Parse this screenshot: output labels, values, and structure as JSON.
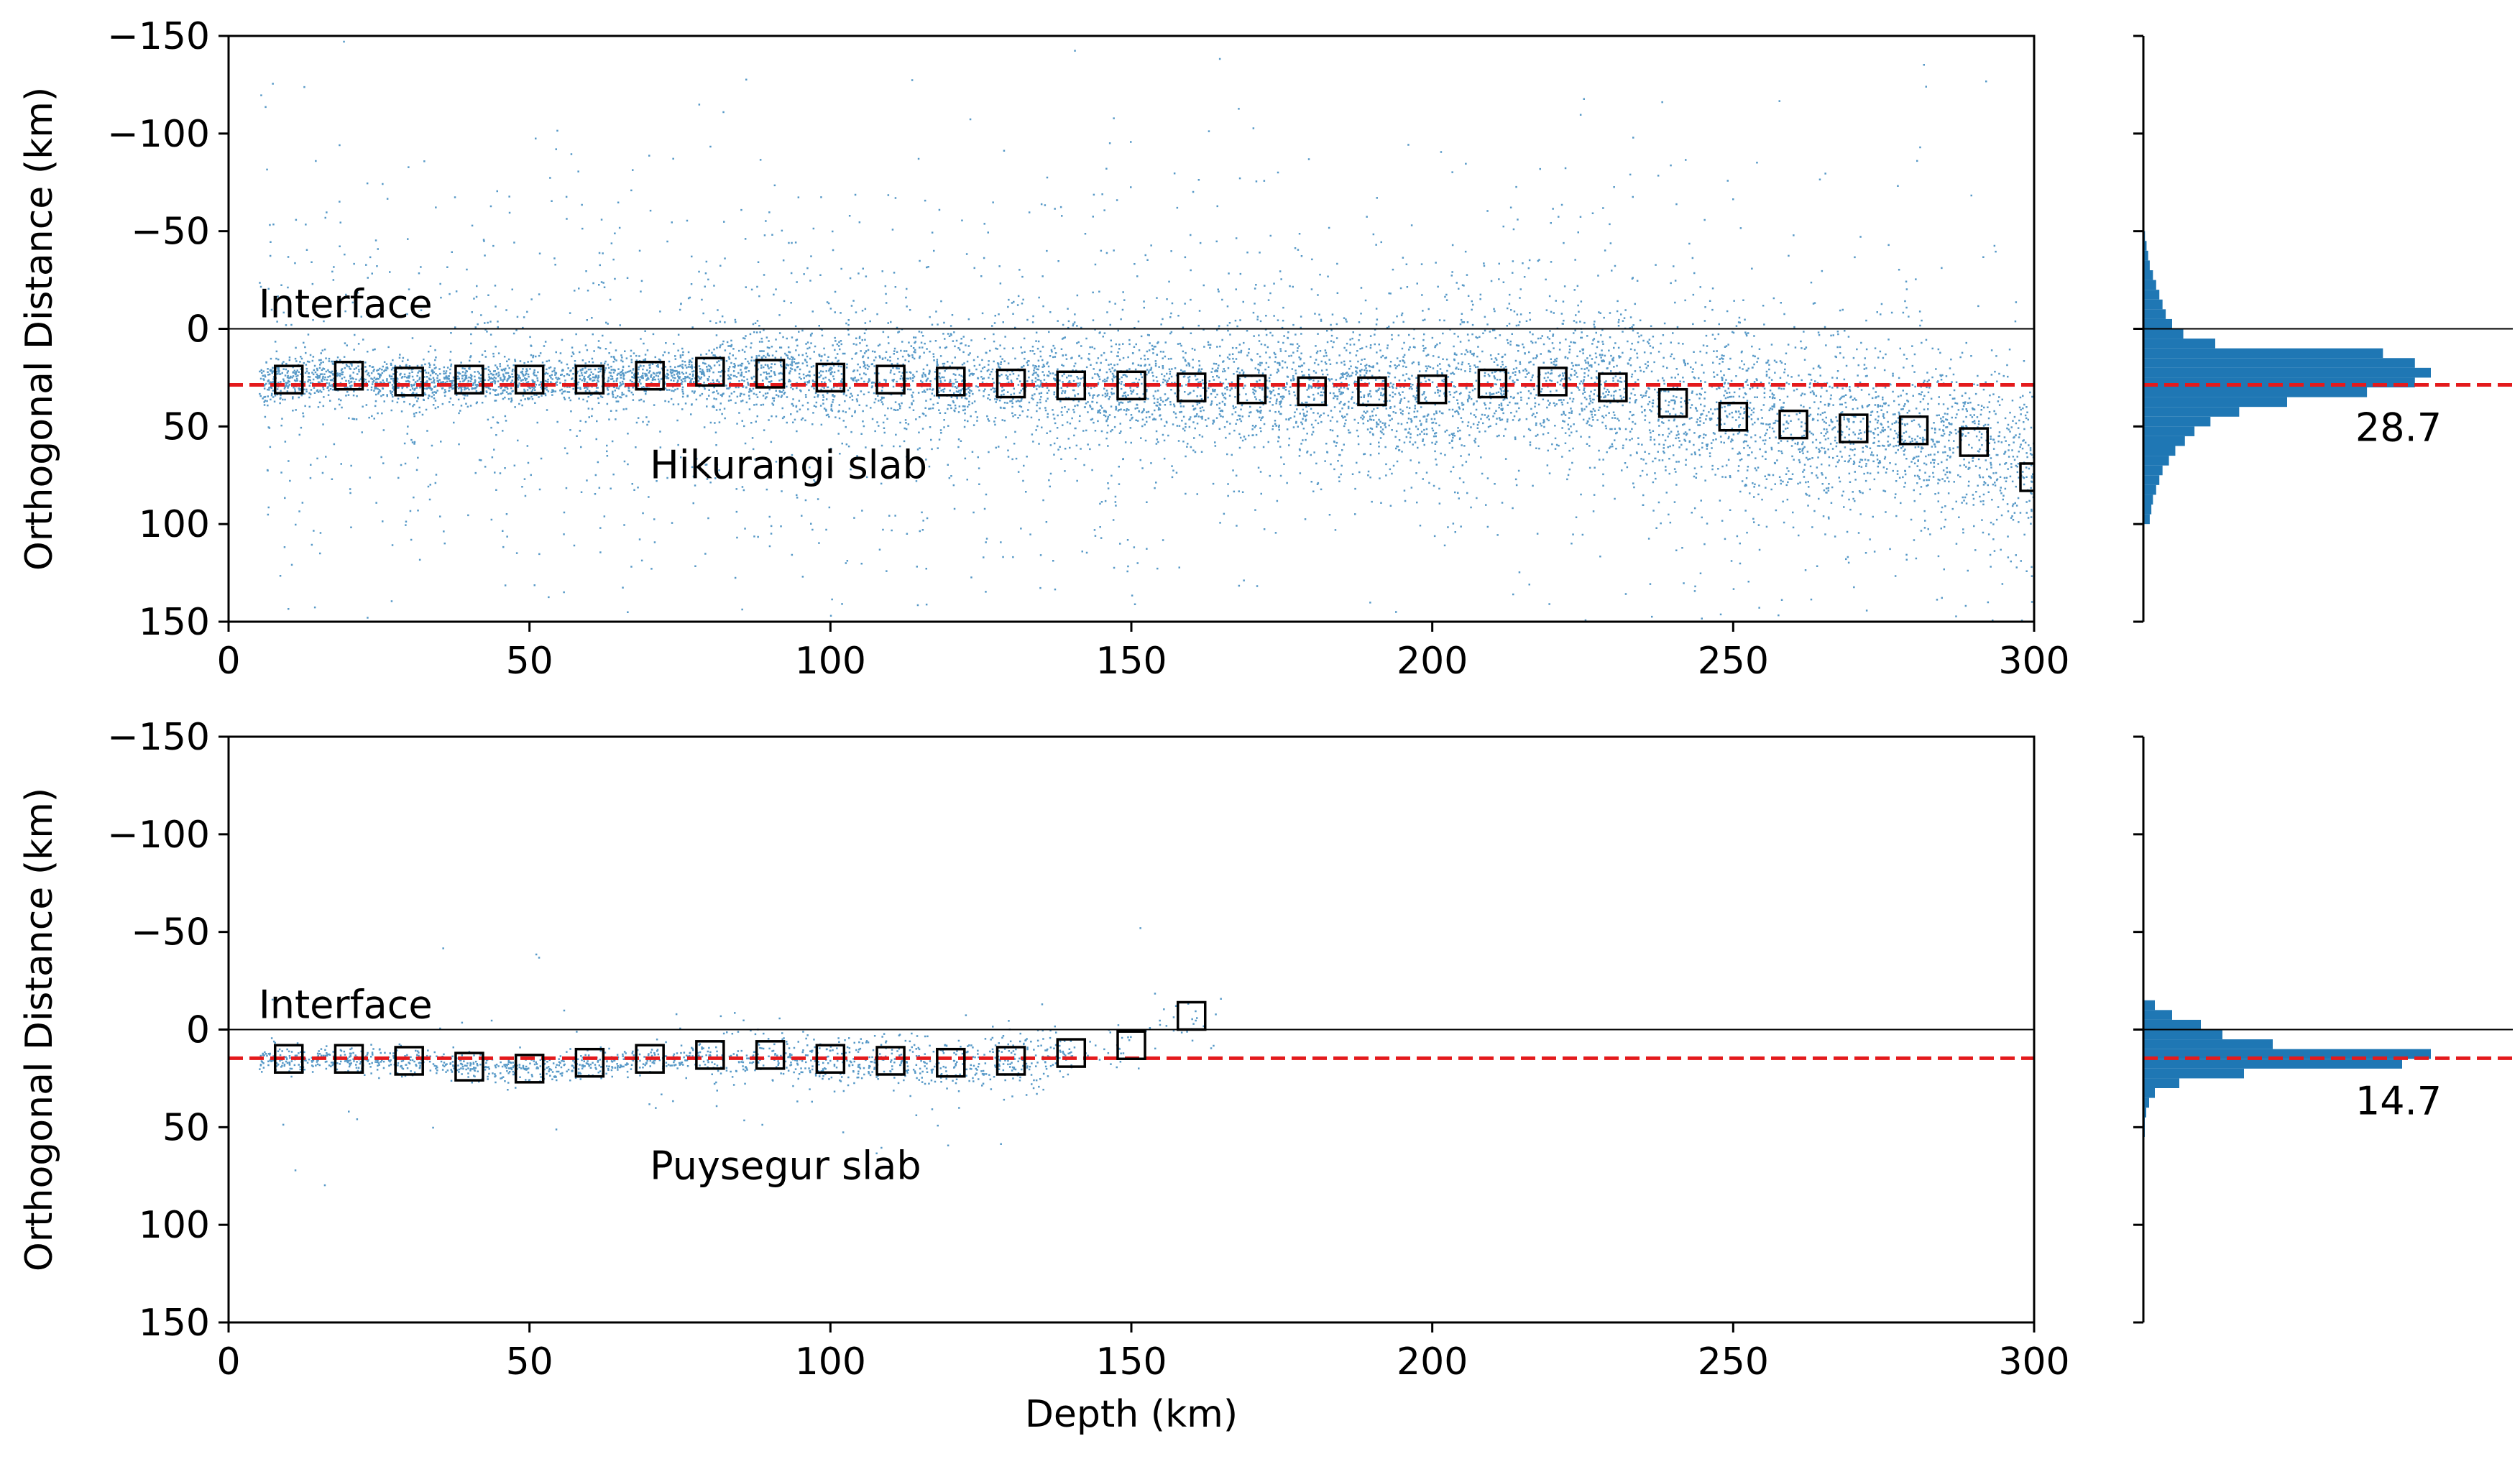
{
  "chart_data": [
    {
      "id": "hikurangi",
      "type": "scatter",
      "xlabel": "",
      "ylabel": "Orthogonal Distance (km)",
      "xlim": [
        0,
        300
      ],
      "ylim": [
        -150,
        150
      ],
      "y_inverted": true,
      "xticks": [
        0,
        50,
        100,
        150,
        200,
        250,
        300
      ],
      "yticks": [
        -150,
        -100,
        -50,
        0,
        50,
        100,
        150
      ],
      "interface_label": "Interface",
      "slab_label": "Hikurangi slab",
      "interface_y": 0,
      "mean_line": 28.7,
      "mean_label": "28.7",
      "scatter_color": "#1f77b4",
      "mean_color": "#e41a1c",
      "binned": {
        "x": [
          10,
          20,
          30,
          40,
          50,
          60,
          70,
          80,
          90,
          100,
          110,
          120,
          130,
          140,
          150,
          160,
          170,
          180,
          190,
          200,
          210,
          220,
          230,
          240,
          250,
          260,
          270,
          280,
          290,
          300
        ],
        "y": [
          26,
          24,
          27,
          26,
          26,
          26,
          24,
          22,
          23,
          25,
          26,
          27,
          28,
          29,
          29,
          30,
          31,
          32,
          32,
          31,
          28,
          27,
          30,
          38,
          45,
          49,
          51,
          52,
          58,
          76
        ]
      },
      "histogram_bins": [
        -50,
        -45,
        -40,
        -35,
        -30,
        -25,
        -20,
        -15,
        -10,
        -5,
        0,
        5,
        10,
        15,
        20,
        25,
        30,
        35,
        40,
        45,
        50,
        55,
        60,
        65,
        70,
        75,
        80,
        85,
        90,
        95
      ],
      "histogram_counts": [
        1,
        2,
        3,
        4,
        6,
        8,
        10,
        12,
        14,
        18,
        25,
        45,
        150,
        170,
        180,
        170,
        140,
        90,
        60,
        42,
        32,
        26,
        20,
        16,
        12,
        10,
        8,
        6,
        5,
        4
      ]
    },
    {
      "id": "puysegur",
      "type": "scatter",
      "xlabel": "Depth (km)",
      "ylabel": "Orthogonal Distance (km)",
      "xlim": [
        0,
        300
      ],
      "ylim": [
        -150,
        150
      ],
      "y_inverted": true,
      "xticks": [
        0,
        50,
        100,
        150,
        200,
        250,
        300
      ],
      "yticks": [
        -150,
        -100,
        -50,
        0,
        50,
        100,
        150
      ],
      "interface_label": "Interface",
      "slab_label": "Puysegur slab",
      "interface_y": 0,
      "mean_line": 14.7,
      "mean_label": "14.7",
      "scatter_color": "#1f77b4",
      "mean_color": "#e41a1c",
      "binned": {
        "x": [
          10,
          20,
          30,
          40,
          50,
          60,
          70,
          80,
          90,
          100,
          110,
          120,
          130,
          140,
          150,
          160
        ],
        "y": [
          15,
          15,
          16,
          19,
          20,
          17,
          15,
          13,
          13,
          15,
          16,
          17,
          16,
          12,
          8,
          -7
        ]
      },
      "histogram_bins": [
        -15,
        -10,
        -5,
        0,
        5,
        10,
        15,
        20,
        25,
        30,
        35,
        40,
        45,
        50
      ],
      "histogram_counts": [
        8,
        20,
        40,
        55,
        90,
        200,
        180,
        70,
        25,
        8,
        4,
        2,
        1,
        1
      ]
    }
  ]
}
